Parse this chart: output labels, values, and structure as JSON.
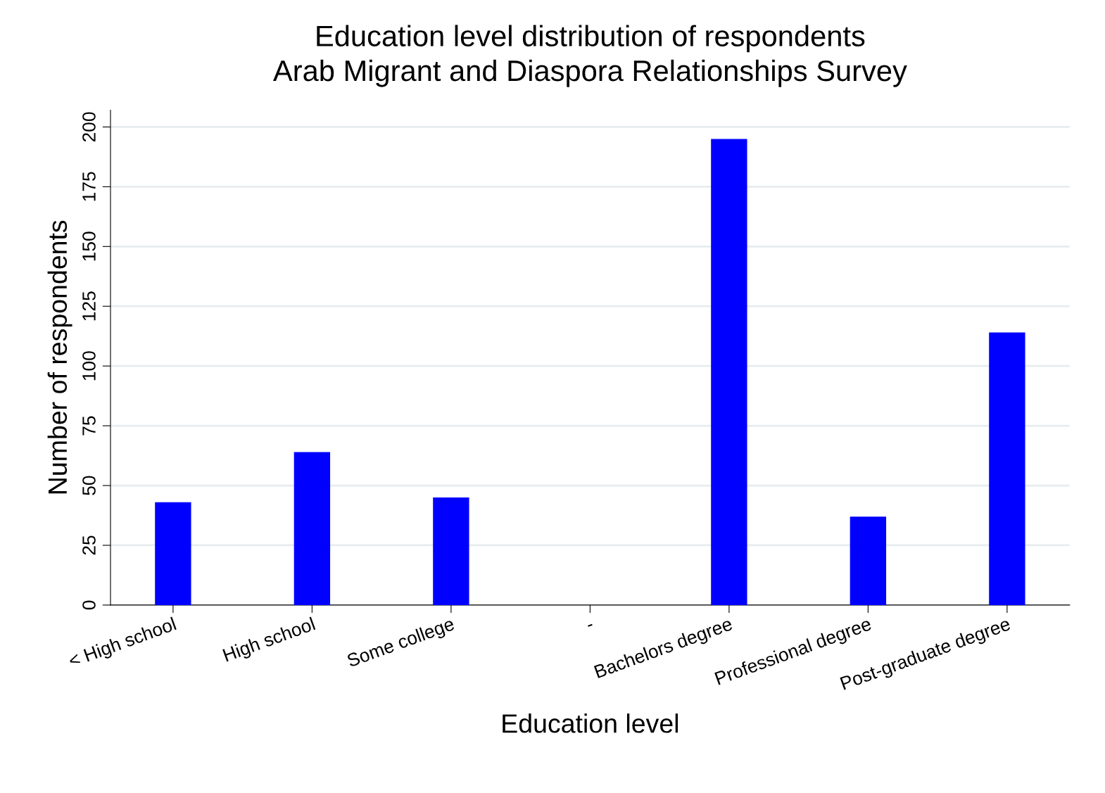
{
  "chart_data": {
    "type": "bar",
    "title": "Education level distribution of respondents\nArab Migrant and Diaspora Relationships Survey",
    "xlabel": "Education level",
    "ylabel": "Number of respondents",
    "categories": [
      "< High school",
      "High school",
      "Some college",
      "-",
      "Bachelors degree",
      "Professional degree",
      "Post-graduate degree"
    ],
    "values": [
      43,
      64,
      45,
      0,
      195,
      37,
      114
    ],
    "color": "#0000ff",
    "ylim": [
      0,
      207
    ],
    "yticks": [
      0,
      25,
      50,
      75,
      100,
      125,
      150,
      175,
      200
    ],
    "grid": "y",
    "legend": false
  }
}
